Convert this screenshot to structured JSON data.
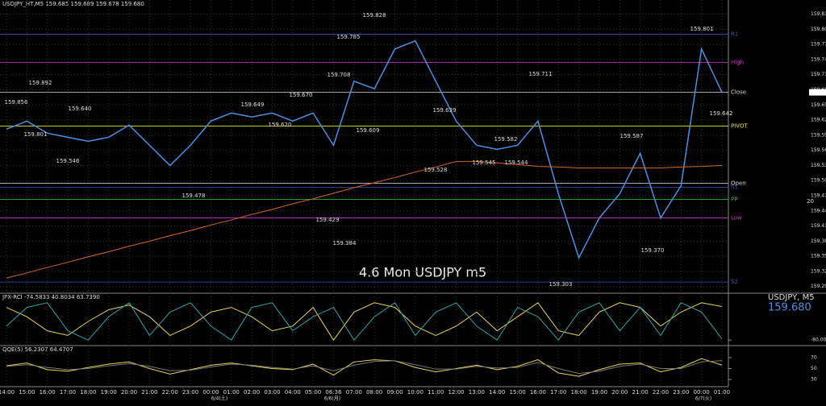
{
  "chart_data": [
    {
      "type": "line",
      "header": "USDJPY_HT,M5  159.685 159.689 159.678 159.680",
      "title": "4.6 Mon USDJPY m5",
      "categories": [
        "14:00",
        "15:00",
        "16:00",
        "17:00",
        "18:00",
        "19:00",
        "20:00",
        "21:00",
        "22:00",
        "23:00",
        "00:00",
        "01:00",
        "02:00",
        "03:00",
        "04:00",
        "05:00",
        "06:36",
        "07:00",
        "08:00",
        "09:00",
        "10:00",
        "11:00",
        "12:00",
        "13:00",
        "14:00",
        "15:00",
        "16:00",
        "17:00",
        "18:00",
        "19:00",
        "20:00",
        "21:00",
        "22:00",
        "23:00",
        "00:00",
        "01:00"
      ],
      "dates": [
        "6/4(土)",
        "6/6(月)",
        "6/7(火)"
      ],
      "series": [
        {
          "name": "USDJPY, M5",
          "color": "#4a90e2",
          "values": [
            159.607,
            159.623,
            159.599,
            159.591,
            159.583,
            159.591,
            159.615,
            159.575,
            159.535,
            159.575,
            159.623,
            159.639,
            159.631,
            159.639,
            159.623,
            159.639,
            159.575,
            159.702,
            159.687,
            159.766,
            159.782,
            159.702,
            159.623,
            159.575,
            159.567,
            159.575,
            159.623,
            159.479,
            159.352,
            159.431,
            159.479,
            159.559,
            159.431,
            159.495,
            159.766,
            159.68
          ]
        },
        {
          "color": "#d2691e",
          "values": [
            159.312,
            159.322,
            159.333,
            159.343,
            159.354,
            159.364,
            159.375,
            159.385,
            159.396,
            159.406,
            159.417,
            159.427,
            159.438,
            159.448,
            159.459,
            159.469,
            159.48,
            159.491,
            159.501,
            159.511,
            159.522,
            159.532,
            159.543,
            159.543,
            159.54,
            159.537,
            159.533,
            159.532,
            159.53,
            159.53,
            159.53,
            159.53,
            159.53,
            159.532,
            159.533,
            159.535
          ]
        }
      ],
      "last_price": {
        "value": 159.68,
        "label": "159.680"
      },
      "ylim": [
        159.285,
        159.855
      ],
      "yticks": [
        159.835,
        159.805,
        159.775,
        159.745,
        159.715,
        159.685,
        159.655,
        159.625,
        159.595,
        159.565,
        159.535,
        159.505,
        159.475,
        159.445,
        159.415,
        159.385,
        159.355,
        159.325,
        159.295
      ],
      "grid": true,
      "levels": [
        {
          "label": "R1",
          "value": 159.795,
          "color": "#3355bb"
        },
        {
          "label": "High",
          "value": 159.739,
          "color": "#c040c0"
        },
        {
          "label": "Close",
          "value": 159.68,
          "color": "#dddddd"
        },
        {
          "label": "PIVOT",
          "value": 159.613,
          "color": "#e8e800"
        },
        {
          "label": "Open",
          "value": 159.5,
          "color": "#dddddd"
        },
        {
          "label": "S1",
          "value": 159.492,
          "color": "#3355bb"
        },
        {
          "label": "PP",
          "value": 159.468,
          "color": "#33cc33"
        },
        {
          "label": "Low",
          "value": 159.431,
          "color": "#c040c0"
        },
        {
          "label": "S2",
          "value": 159.304,
          "color": "#3355bb"
        }
      ],
      "side_label": "20",
      "annotations": [
        "159.892",
        "159.856",
        "159.801",
        "159.546",
        "159.640",
        "159.478",
        "159.649",
        "159.620",
        "159.670",
        "159.785",
        "159.708",
        "159.429",
        "159.384",
        "159.828",
        "159.609",
        "159.711",
        "159.639",
        "159.528",
        "159.545",
        "159.582",
        "159.544",
        "159.303",
        "159.587",
        "159.370",
        "159.801",
        "159.642"
      ]
    },
    {
      "type": "line",
      "title": "JPX-RCI -74.5833 40.8034 63.7390",
      "series": [
        {
          "color": "#e8d44d",
          "values": [
            60,
            20,
            -40,
            -60,
            0,
            50,
            70,
            20,
            -60,
            -20,
            40,
            60,
            20,
            -40,
            -20,
            60,
            -80,
            40,
            80,
            60,
            -20,
            -60,
            -20,
            40,
            -40,
            20,
            80,
            -40,
            -60,
            40,
            80,
            60,
            -20,
            40,
            80,
            63.739
          ]
        },
        {
          "color": "#2aa6a6",
          "values": [
            -20,
            60,
            80,
            -40,
            -80,
            20,
            80,
            -60,
            40,
            80,
            -20,
            -80,
            60,
            80,
            -40,
            20,
            60,
            -80,
            20,
            80,
            -60,
            40,
            80,
            -20,
            -80,
            60,
            20,
            -80,
            40,
            80,
            -40,
            60,
            -60,
            80,
            40,
            -74.5833
          ]
        }
      ],
      "ylim": [
        -100,
        100
      ],
      "yticks": [
        {
          "value": -80,
          "label": "-80.000"
        }
      ]
    },
    {
      "type": "line",
      "title": "QQE(5) 56.2307 64.4707",
      "series": [
        {
          "color": "#e8d44d",
          "values": [
            55,
            60,
            48,
            45,
            52,
            58,
            62,
            50,
            40,
            48,
            56,
            60,
            55,
            50,
            48,
            58,
            38,
            62,
            66,
            64,
            52,
            44,
            50,
            56,
            48,
            54,
            66,
            42,
            36,
            48,
            58,
            60,
            44,
            52,
            68,
            56.2307
          ]
        },
        {
          "color": "#777777",
          "values": [
            54,
            57,
            52,
            48,
            50,
            55,
            59,
            54,
            46,
            47,
            53,
            58,
            56,
            52,
            49,
            55,
            46,
            56,
            63,
            64,
            57,
            49,
            49,
            54,
            51,
            52,
            61,
            50,
            41,
            45,
            54,
            58,
            50,
            50,
            62,
            64.4707
          ]
        }
      ],
      "ylim": [
        20,
        80
      ],
      "yticks": [
        30,
        50,
        70
      ]
    }
  ]
}
